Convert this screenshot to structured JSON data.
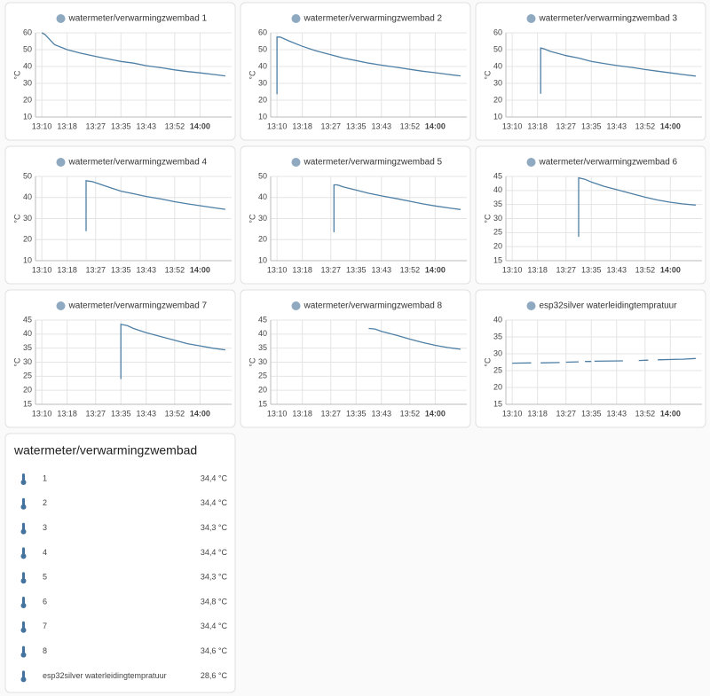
{
  "chart_data": [
    {
      "type": "line",
      "title": "watermeter/verwarmingzwembad 1",
      "y_label": "°C",
      "color": "#4e7fa5",
      "grid": true,
      "x": [
        "13:10",
        "13:11",
        "13:14",
        "13:18",
        "13:22",
        "13:27",
        "13:31",
        "13:35",
        "13:39",
        "13:43",
        "13:48",
        "13:52",
        "13:56",
        "14:00",
        "14:04",
        "14:08"
      ],
      "values": [
        60,
        59,
        53,
        50,
        48,
        46,
        44.5,
        43,
        42,
        40.5,
        39.2,
        38,
        37,
        36.2,
        35.3,
        34.4
      ],
      "xlim": [
        "13:08",
        "14:10"
      ],
      "xticks": [
        "13:10",
        "13:18",
        "13:27",
        "13:35",
        "13:43",
        "13:52",
        "14:00"
      ],
      "ylim": [
        10,
        60
      ],
      "yticks": [
        10,
        20,
        30,
        40,
        50,
        60
      ]
    },
    {
      "type": "line",
      "title": "watermeter/verwarmingzwembad 2",
      "y_label": "°C",
      "color": "#4e7fa5",
      "grid": true,
      "x": [
        "13:10",
        "13:10",
        "13:11",
        "13:14",
        "13:18",
        "13:22",
        "13:27",
        "13:31",
        "13:35",
        "13:39",
        "13:43",
        "13:48",
        "13:52",
        "13:56",
        "14:00",
        "14:04",
        "14:08"
      ],
      "values": [
        23.5,
        57.5,
        57.5,
        55,
        52,
        49.5,
        47,
        45,
        43.5,
        42,
        40.8,
        39.5,
        38.3,
        37.2,
        36.3,
        35.3,
        34.4
      ],
      "xlim": [
        "13:08",
        "14:10"
      ],
      "xticks": [
        "13:10",
        "13:18",
        "13:27",
        "13:35",
        "13:43",
        "13:52",
        "14:00"
      ],
      "ylim": [
        10,
        60
      ],
      "yticks": [
        10,
        20,
        30,
        40,
        50,
        60
      ]
    },
    {
      "type": "line",
      "title": "watermeter/verwarmingzwembad 3",
      "y_label": "°C",
      "color": "#4e7fa5",
      "grid": true,
      "x": [
        "13:19",
        "13:19",
        "13:20",
        "13:22",
        "13:27",
        "13:31",
        "13:35",
        "13:39",
        "13:43",
        "13:48",
        "13:52",
        "13:56",
        "14:00",
        "14:04",
        "14:08"
      ],
      "values": [
        23.8,
        51,
        50.5,
        49,
        46.5,
        45,
        43,
        41.8,
        40.6,
        39.4,
        38.2,
        37.2,
        36.2,
        35.2,
        34.3
      ],
      "xlim": [
        "13:08",
        "14:10"
      ],
      "xticks": [
        "13:10",
        "13:18",
        "13:27",
        "13:35",
        "13:43",
        "13:52",
        "14:00"
      ],
      "ylim": [
        10,
        60
      ],
      "yticks": [
        10,
        20,
        30,
        40,
        50,
        60
      ]
    },
    {
      "type": "line",
      "title": "watermeter/verwarmingzwembad 4",
      "y_label": "°C",
      "color": "#4e7fa5",
      "grid": true,
      "x": [
        "13:24",
        "13:24",
        "13:26",
        "13:29",
        "13:31",
        "13:35",
        "13:39",
        "13:43",
        "13:48",
        "13:52",
        "13:56",
        "14:00",
        "14:04",
        "14:08"
      ],
      "values": [
        24,
        48,
        47.5,
        46,
        45,
        43,
        41.8,
        40.5,
        39.2,
        38,
        37,
        36.1,
        35.2,
        34.4
      ],
      "xlim": [
        "13:08",
        "14:10"
      ],
      "xticks": [
        "13:10",
        "13:18",
        "13:27",
        "13:35",
        "13:43",
        "13:52",
        "14:00"
      ],
      "ylim": [
        10,
        50
      ],
      "yticks": [
        10,
        20,
        30,
        40,
        50
      ]
    },
    {
      "type": "line",
      "title": "watermeter/verwarmingzwembad 5",
      "y_label": "°C",
      "color": "#4e7fa5",
      "grid": true,
      "x": [
        "13:28",
        "13:28",
        "13:29",
        "13:31",
        "13:35",
        "13:39",
        "13:43",
        "13:48",
        "13:52",
        "13:56",
        "14:00",
        "14:04",
        "14:08"
      ],
      "values": [
        23.5,
        46,
        46,
        45,
        43.5,
        42,
        40.8,
        39.4,
        38.2,
        37,
        36,
        35.1,
        34.3
      ],
      "xlim": [
        "13:08",
        "14:10"
      ],
      "xticks": [
        "13:10",
        "13:18",
        "13:27",
        "13:35",
        "13:43",
        "13:52",
        "14:00"
      ],
      "ylim": [
        10,
        50
      ],
      "yticks": [
        10,
        20,
        30,
        40,
        50
      ]
    },
    {
      "type": "line",
      "title": "watermeter/verwarmingzwembad 6",
      "y_label": "°C",
      "color": "#4e7fa5",
      "grid": true,
      "x": [
        "13:31",
        "13:31",
        "13:33",
        "13:35",
        "13:39",
        "13:43",
        "13:48",
        "13:52",
        "13:56",
        "14:00",
        "14:04",
        "14:08"
      ],
      "values": [
        23.5,
        44.5,
        44,
        43,
        41.5,
        40.3,
        38.8,
        37.6,
        36.6,
        35.8,
        35.2,
        34.8
      ],
      "xlim": [
        "13:08",
        "14:10"
      ],
      "xticks": [
        "13:10",
        "13:18",
        "13:27",
        "13:35",
        "13:43",
        "13:52",
        "14:00"
      ],
      "ylim": [
        15,
        45
      ],
      "yticks": [
        15,
        20,
        25,
        30,
        35,
        40,
        45
      ]
    },
    {
      "type": "line",
      "title": "watermeter/verwarmingzwembad 7",
      "y_label": "°C",
      "color": "#4e7fa5",
      "grid": true,
      "x": [
        "13:35",
        "13:35",
        "13:37",
        "13:39",
        "13:43",
        "13:48",
        "13:52",
        "13:56",
        "14:00",
        "14:04",
        "14:08"
      ],
      "values": [
        24,
        43.5,
        43,
        42,
        40.5,
        39,
        37.8,
        36.6,
        35.8,
        35,
        34.4
      ],
      "xlim": [
        "13:08",
        "14:10"
      ],
      "xticks": [
        "13:10",
        "13:18",
        "13:27",
        "13:35",
        "13:43",
        "13:52",
        "14:00"
      ],
      "ylim": [
        15,
        45
      ],
      "yticks": [
        15,
        20,
        25,
        30,
        35,
        40,
        45
      ]
    },
    {
      "type": "line",
      "title": "watermeter/verwarmingzwembad 8",
      "y_label": "°C",
      "color": "#4e7fa5",
      "grid": true,
      "x": [
        "13:39",
        "13:41",
        "13:43",
        "13:48",
        "13:52",
        "13:56",
        "14:00",
        "14:04",
        "14:08"
      ],
      "values": [
        42,
        41.8,
        41,
        39.5,
        38.2,
        37,
        36,
        35.2,
        34.6
      ],
      "xlim": [
        "13:08",
        "14:10"
      ],
      "xticks": [
        "13:10",
        "13:18",
        "13:27",
        "13:35",
        "13:43",
        "13:52",
        "14:00"
      ],
      "ylim": [
        15,
        45
      ],
      "yticks": [
        15,
        20,
        25,
        30,
        35,
        40,
        45
      ]
    },
    {
      "type": "line",
      "title": "esp32silver waterleidingtempratuur",
      "y_label": "°C",
      "color": "#4e7fa5",
      "grid": true,
      "x": [
        "13:10",
        "13:16",
        null,
        "13:19",
        "13:25",
        null,
        "13:27",
        "13:31",
        null,
        "13:33",
        "13:35",
        null,
        "13:36",
        "13:45",
        null,
        "13:50",
        "13:53",
        null,
        "13:56",
        "14:04",
        "14:08"
      ],
      "values": [
        27.2,
        27.3,
        null,
        27.3,
        27.4,
        null,
        27.5,
        27.6,
        null,
        27.7,
        27.7,
        null,
        27.8,
        27.9,
        null,
        28.0,
        28.1,
        null,
        28.2,
        28.4,
        28.6
      ],
      "xlim": [
        "13:08",
        "14:10"
      ],
      "xticks": [
        "13:10",
        "13:18",
        "13:27",
        "13:35",
        "13:43",
        "13:52",
        "14:00"
      ],
      "ylim": [
        15,
        40
      ],
      "yticks": [
        15,
        20,
        25,
        30,
        35,
        40
      ]
    }
  ],
  "entities": {
    "title": "watermeter/verwarmingzwembad",
    "rows": [
      {
        "name": "1",
        "state": "34,4 °C"
      },
      {
        "name": "2",
        "state": "34,4 °C"
      },
      {
        "name": "3",
        "state": "34,3 °C"
      },
      {
        "name": "4",
        "state": "34,4 °C"
      },
      {
        "name": "5",
        "state": "34,3 °C"
      },
      {
        "name": "6",
        "state": "34,8 °C"
      },
      {
        "name": "7",
        "state": "34,4 °C"
      },
      {
        "name": "8",
        "state": "34,6 °C"
      },
      {
        "name": "esp32silver waterleidingtempratuur",
        "state": "28,6 °C"
      }
    ]
  }
}
